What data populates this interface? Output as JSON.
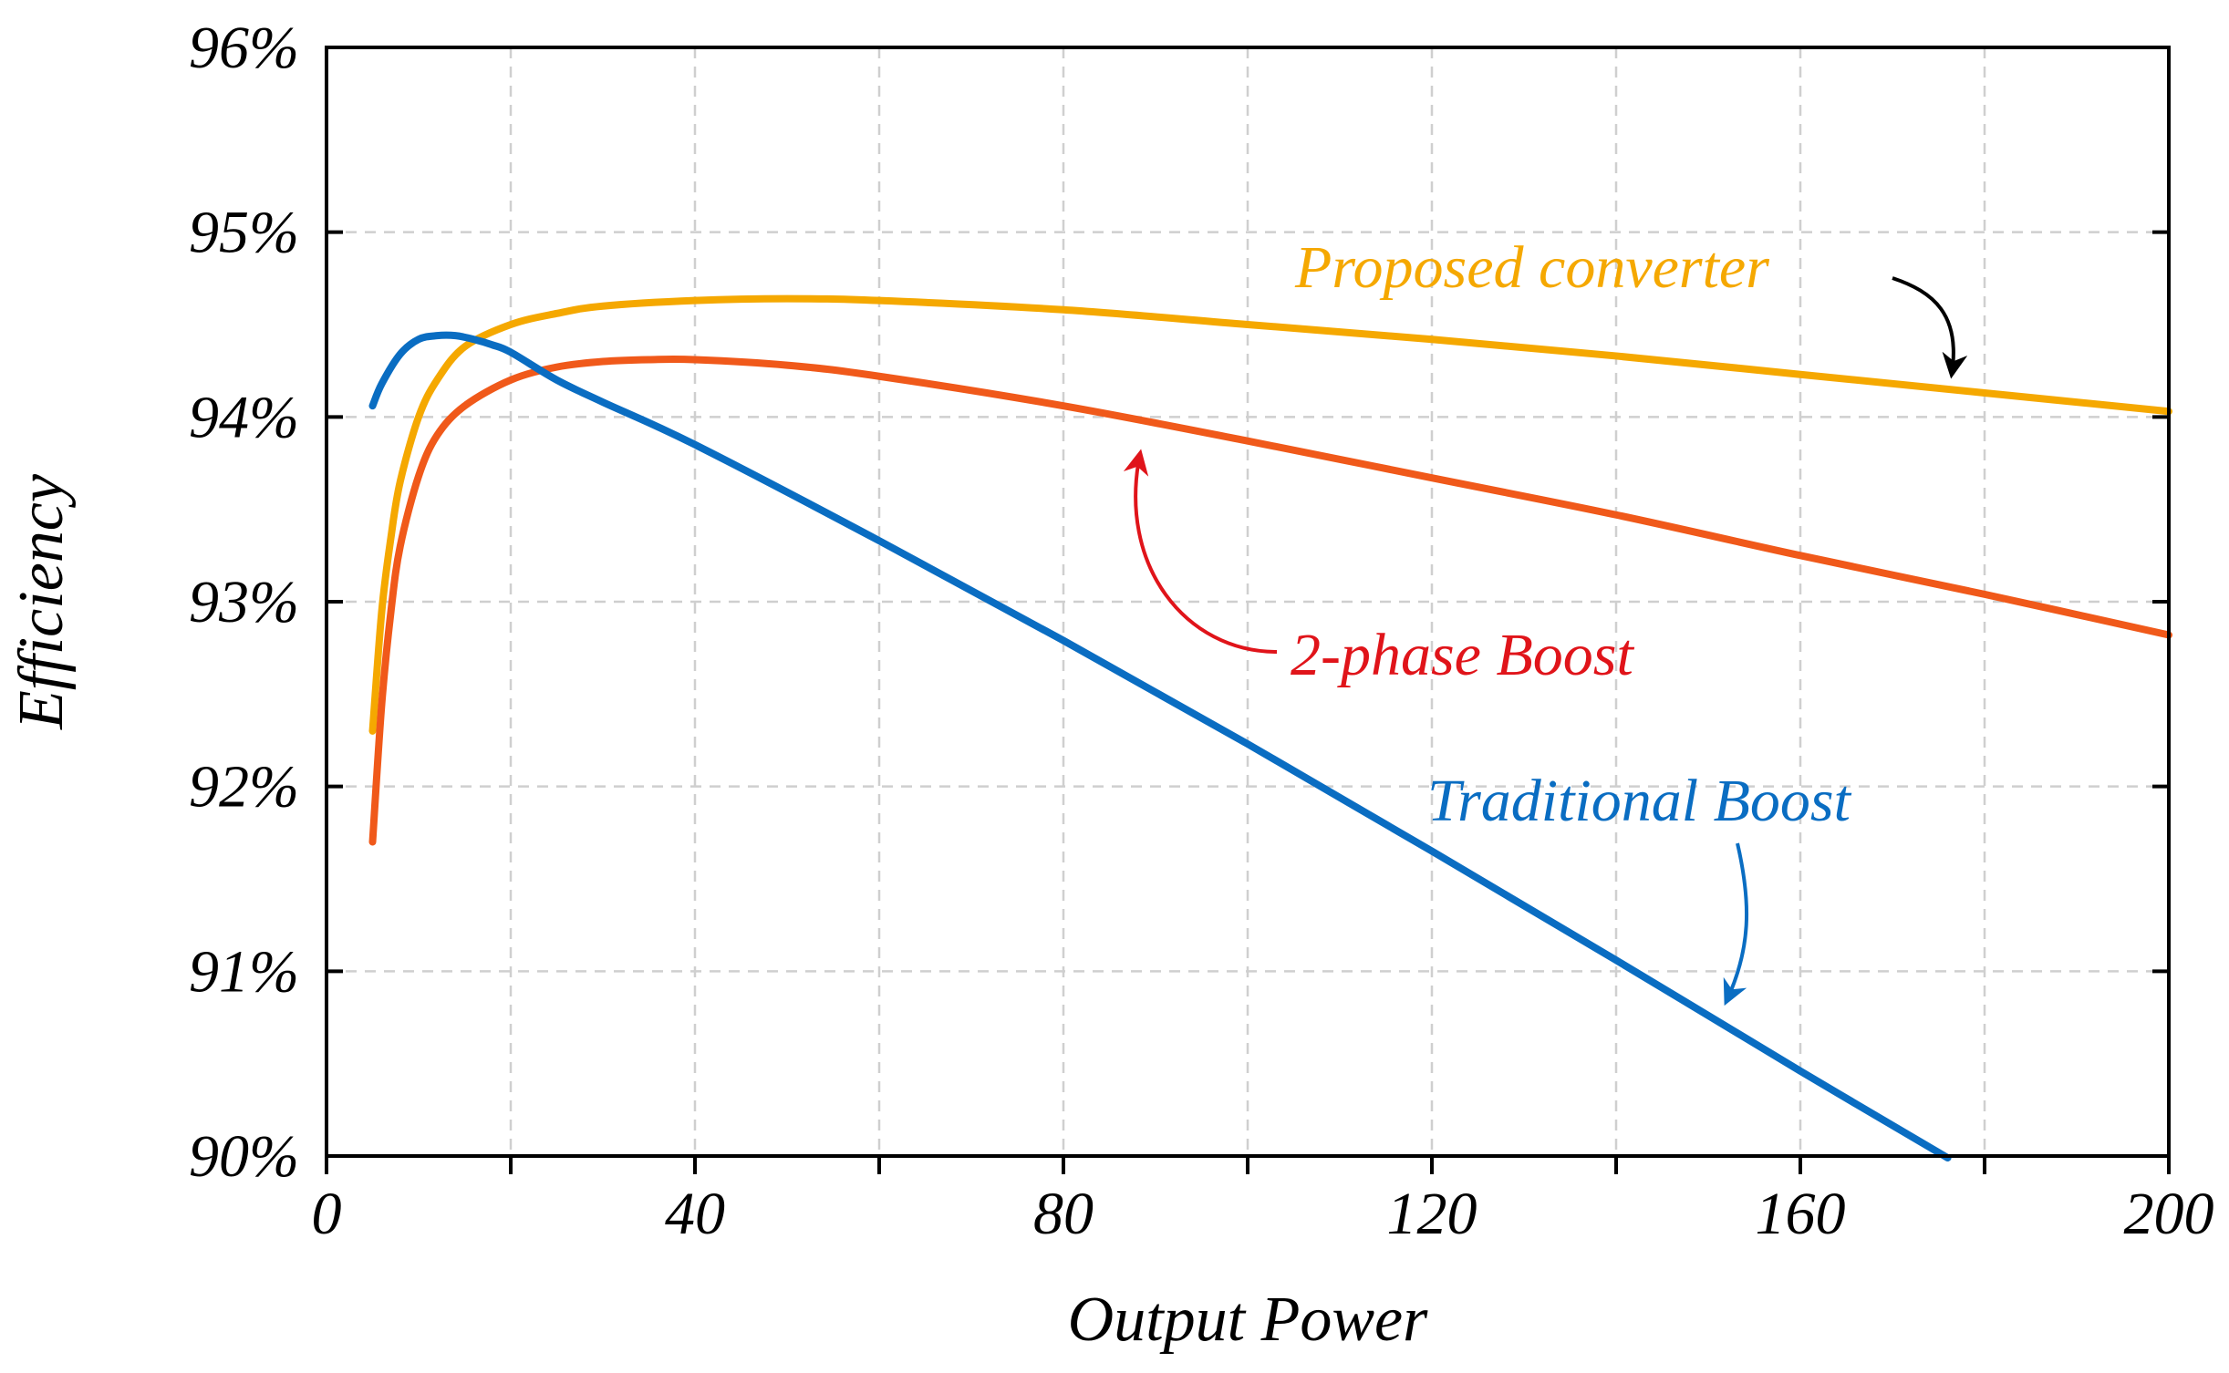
{
  "chart_data": {
    "type": "line",
    "title": "",
    "xlabel": "Output Power",
    "ylabel": "Efficiency",
    "xlim": [
      0,
      200
    ],
    "ylim": [
      90,
      96
    ],
    "grid": true,
    "x_ticks": [
      0,
      40,
      80,
      120,
      160,
      200
    ],
    "x_tick_labels": [
      "0",
      "40",
      "80",
      "120",
      "160",
      "200"
    ],
    "x_minor_ticks": [
      20,
      60,
      100,
      140,
      180
    ],
    "y_ticks": [
      90,
      91,
      92,
      93,
      94,
      95,
      96
    ],
    "y_tick_labels": [
      "90%",
      "91%",
      "92%",
      "93%",
      "94%",
      "95%",
      "96%"
    ],
    "series": [
      {
        "name": "Proposed converter",
        "color": "#F5A800",
        "x": [
          5,
          6,
          7,
          8,
          10,
          12,
          15,
          20,
          25,
          30,
          40,
          50,
          60,
          80,
          100,
          120,
          140,
          160,
          180,
          200
        ],
        "y": [
          92.3,
          92.95,
          93.35,
          93.65,
          94.0,
          94.2,
          94.38,
          94.5,
          94.56,
          94.6,
          94.63,
          94.64,
          94.63,
          94.58,
          94.5,
          94.42,
          94.33,
          94.23,
          94.13,
          94.03
        ]
      },
      {
        "name": "2-phase Boost",
        "color": "#F0591A",
        "x": [
          5,
          6,
          7,
          8,
          10,
          12,
          15,
          20,
          25,
          30,
          35,
          40,
          50,
          60,
          80,
          100,
          120,
          140,
          160,
          180,
          200
        ],
        "y": [
          91.7,
          92.45,
          92.95,
          93.3,
          93.68,
          93.9,
          94.06,
          94.2,
          94.27,
          94.3,
          94.31,
          94.31,
          94.28,
          94.22,
          94.06,
          93.87,
          93.67,
          93.47,
          93.25,
          93.04,
          92.82
        ]
      },
      {
        "name": "Traditional Boost",
        "color": "#0A6DC2",
        "x": [
          5,
          6,
          8,
          10,
          12,
          14,
          16,
          18,
          20,
          25,
          30,
          40,
          60,
          80,
          100,
          120,
          140,
          160,
          176
        ],
        "y": [
          94.06,
          94.18,
          94.34,
          94.42,
          94.44,
          94.44,
          94.42,
          94.39,
          94.35,
          94.2,
          94.08,
          93.85,
          93.33,
          92.79,
          92.23,
          91.65,
          91.06,
          90.46,
          89.99
        ]
      }
    ],
    "annotations": [
      {
        "text": "Proposed converter",
        "series": "Proposed converter",
        "color": "#F5A800",
        "arrow_color": "#000000"
      },
      {
        "text": "2-phase Boost",
        "series": "2-phase Boost",
        "color": "#E0141A",
        "arrow_color": "#E0141A"
      },
      {
        "text": "Traditional Boost",
        "series": "Traditional Boost",
        "color": "#0A6DC2",
        "arrow_color": "#0A6DC2"
      }
    ]
  }
}
